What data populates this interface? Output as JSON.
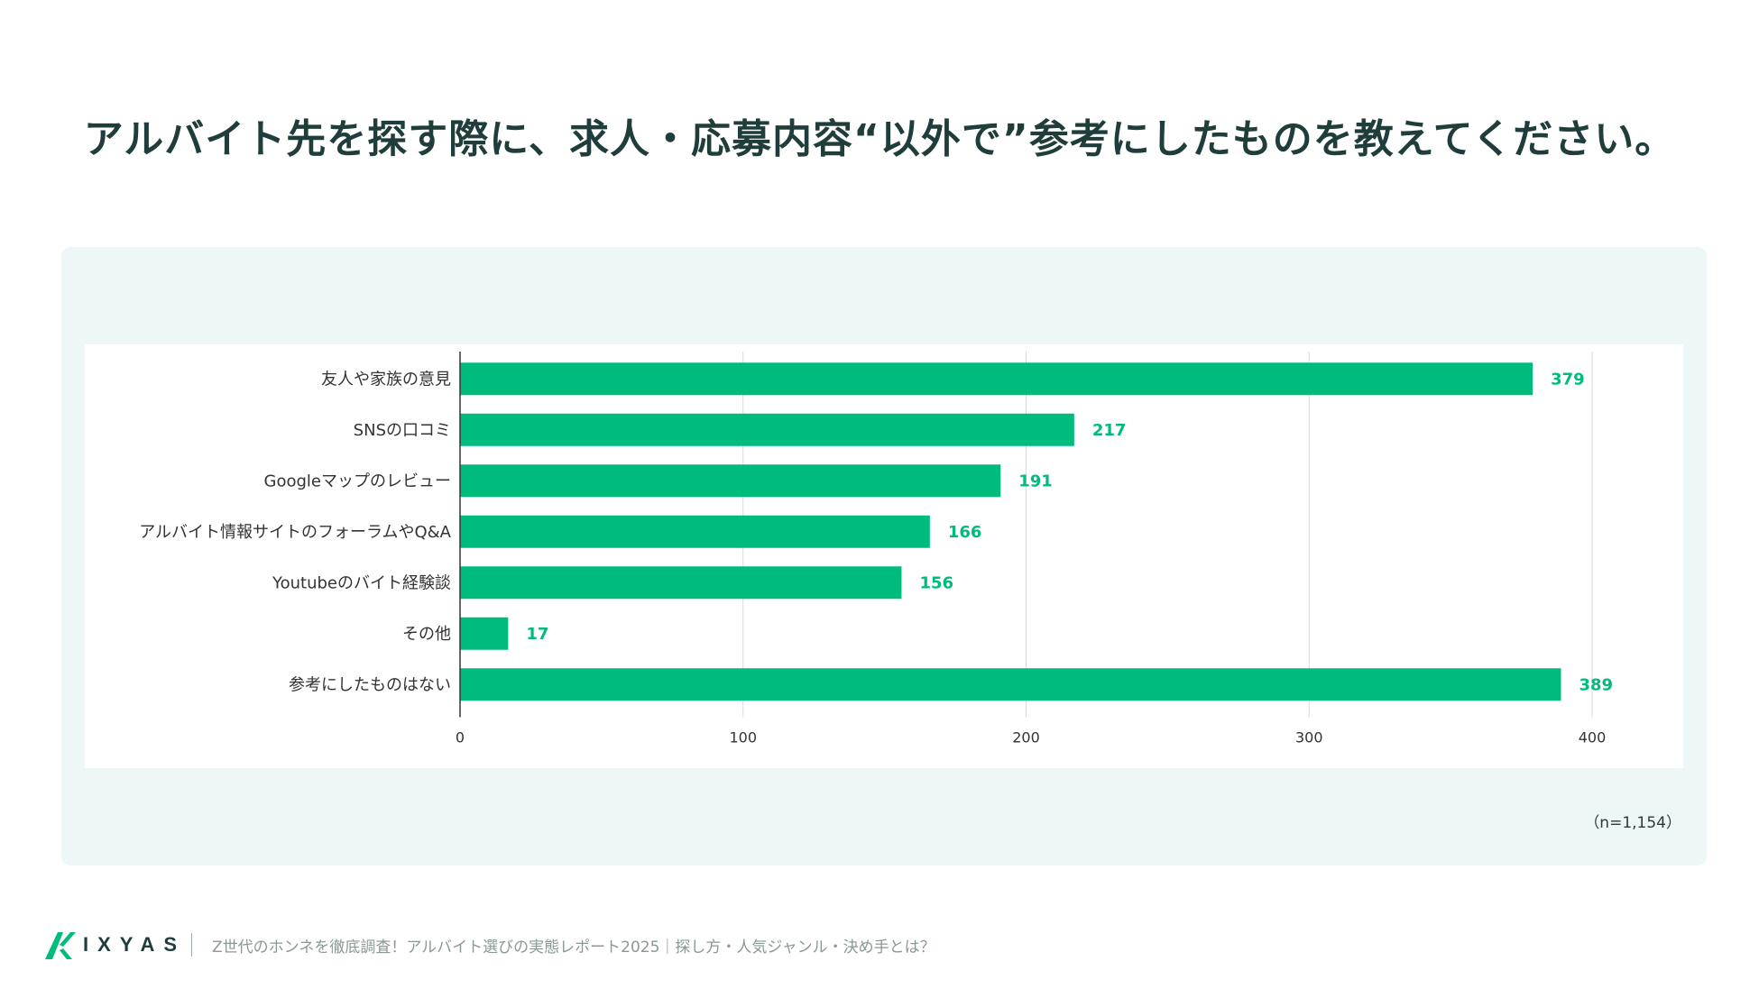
{
  "title": "アルバイト先を探す際に、求人・応募内容“以外で”参考にしたものを教えてください。",
  "sample_note": "（n=1,154）",
  "footer": {
    "logo_text": "IXYAS",
    "caption": "Z世代のホンネを徹底調査！アルバイト選びの実態レポート2025｜探し方・人気ジャンル・決め手とは？"
  },
  "colors": {
    "bar": "#00bb7e",
    "value_label": "#00bb7e",
    "title": "#1f3d3a",
    "grid": "#d9d9d9"
  },
  "chart_data": {
    "type": "bar",
    "orientation": "horizontal",
    "categories": [
      "友人や家族の意見",
      "SNSの口コミ",
      "Googleマップのレビュー",
      "アルバイト情報サイトのフォーラムやQ&A",
      "Youtubeのバイト経験談",
      "その他",
      "参考にしたものはない"
    ],
    "values": [
      379,
      217,
      191,
      166,
      156,
      17,
      389
    ],
    "xlim": [
      0,
      400
    ],
    "xticks": [
      0,
      100,
      200,
      300,
      400
    ],
    "grid": true,
    "data_labels": true
  }
}
